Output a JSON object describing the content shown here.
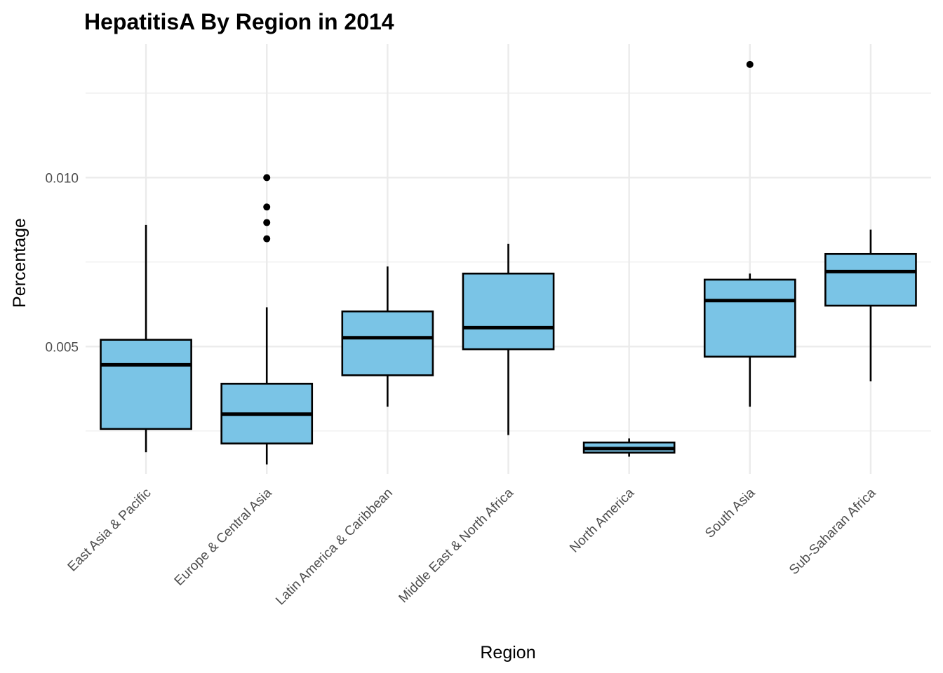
{
  "chart_data": {
    "type": "boxplot",
    "title": "HepatitisA By Region in 2014",
    "xlabel": "Region",
    "ylabel": "Percentage",
    "ylim": [
      0.00123,
      0.01395
    ],
    "yticks": [
      0.005,
      0.01
    ],
    "ytick_labels": [
      "0.005",
      "0.010"
    ],
    "grid": true,
    "colors": {
      "box_fill": "#7AC4E6",
      "stroke": "#000000",
      "grid": "#EBEBEB"
    },
    "categories": [
      "East Asia & Pacific",
      "Europe & Central Asia",
      "Latin America & Caribbean",
      "Middle East & North Africa",
      "North America",
      "South Asia",
      "Sub-Saharan Africa"
    ],
    "boxes": [
      {
        "min": 0.00187,
        "q1": 0.00256,
        "median": 0.00446,
        "q3": 0.0052,
        "max": 0.0086,
        "outliers": []
      },
      {
        "min": 0.00151,
        "q1": 0.00213,
        "median": 0.003,
        "q3": 0.0039,
        "max": 0.00616,
        "outliers": [
          0.01,
          0.00913,
          0.00867,
          0.00819
        ]
      },
      {
        "min": 0.00322,
        "q1": 0.00415,
        "median": 0.00526,
        "q3": 0.00604,
        "max": 0.00737,
        "outliers": []
      },
      {
        "min": 0.00238,
        "q1": 0.00492,
        "median": 0.00556,
        "q3": 0.00716,
        "max": 0.00804,
        "outliers": []
      },
      {
        "min": 0.00174,
        "q1": 0.00186,
        "median": 0.00198,
        "q3": 0.00216,
        "max": 0.00228,
        "outliers": []
      },
      {
        "min": 0.00322,
        "q1": 0.0047,
        "median": 0.00636,
        "q3": 0.00698,
        "max": 0.00716,
        "outliers": [
          0.01335
        ]
      },
      {
        "min": 0.00397,
        "q1": 0.00621,
        "median": 0.00722,
        "q3": 0.00774,
        "max": 0.00846,
        "outliers": []
      }
    ]
  }
}
